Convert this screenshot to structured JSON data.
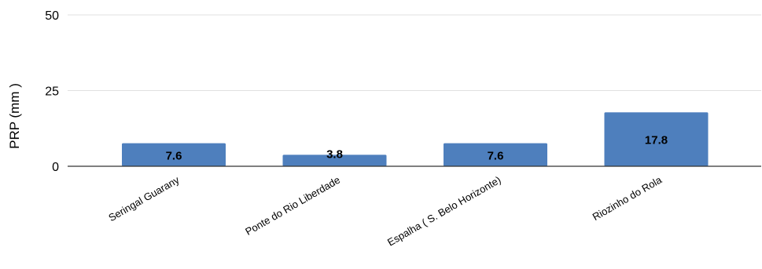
{
  "chart_data": {
    "type": "bar",
    "categories": [
      "Seringal Guarany",
      "Ponte do Rio Liberdade",
      "Espalha ( S. Belo Horizonte)",
      "Riozinho do Rola"
    ],
    "values": [
      7.6,
      3.8,
      7.6,
      17.8
    ],
    "data_labels": [
      "7.6",
      "3.8",
      "7.6",
      "17.8"
    ],
    "title": "",
    "xlabel": "",
    "ylabel": "PRP (mm )",
    "ylim": [
      0,
      50
    ],
    "yticks": [
      0,
      25,
      50
    ],
    "ytick_labels": [
      "0",
      "25",
      "50"
    ],
    "grid": true,
    "legend": "none",
    "bar_color": "#4e7fbd"
  }
}
